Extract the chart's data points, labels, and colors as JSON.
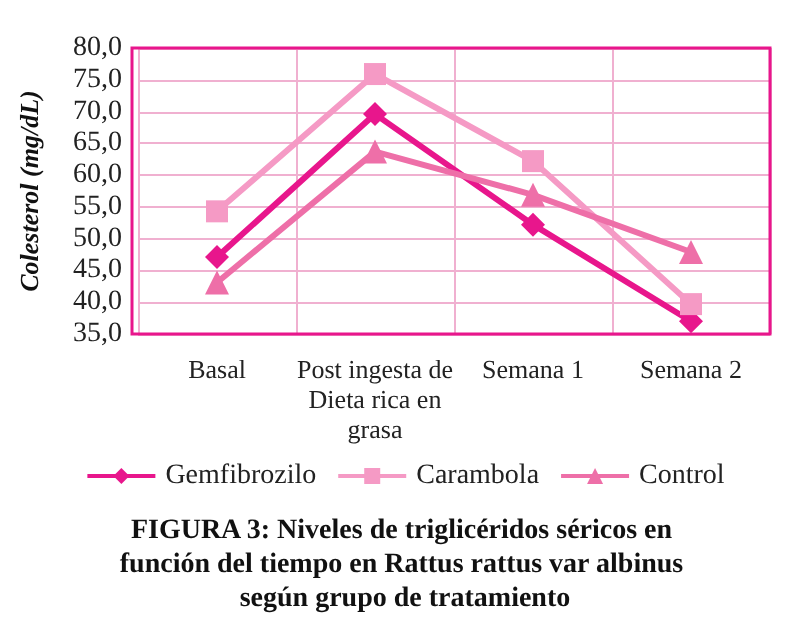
{
  "chart_data": {
    "type": "line",
    "title": "FIGURA 3: Niveles de triglicéridos séricos en función del tiempo en Rattus rattus var albinus según grupo de tratamiento",
    "ylabel": "Colesterol (mg/dL)",
    "categories": [
      "Basal",
      "Post ingesta de Dieta rica en grasa",
      "Semana 1",
      "Semana 2"
    ],
    "series": [
      {
        "name": "Gemfibrozilo",
        "color": "#e8168c",
        "marker": "diamond",
        "values": [
          47.1,
          69.6,
          52.2,
          37.0
        ]
      },
      {
        "name": "Carambola",
        "color": "#f59ac5",
        "marker": "square",
        "values": [
          54.3,
          75.9,
          62.2,
          39.7
        ]
      },
      {
        "name": "Control",
        "color": "#ee6fa8",
        "marker": "triangle",
        "values": [
          43.1,
          63.7,
          56.9,
          47.9
        ]
      }
    ],
    "ylim": [
      35,
      80
    ],
    "yticks": [
      {
        "value": 35,
        "label": "35,0"
      },
      {
        "value": 40,
        "label": "40,0"
      },
      {
        "value": 45,
        "label": "45,0"
      },
      {
        "value": 50,
        "label": "50,0"
      },
      {
        "value": 55,
        "label": "55,0"
      },
      {
        "value": 60,
        "label": "60,0"
      },
      {
        "value": 65,
        "label": "65,0"
      },
      {
        "value": 70,
        "label": "70,0"
      },
      {
        "value": 75,
        "label": "75,0"
      },
      {
        "value": 80,
        "label": "80,0"
      }
    ],
    "grid": true,
    "legend": "bottom"
  }
}
